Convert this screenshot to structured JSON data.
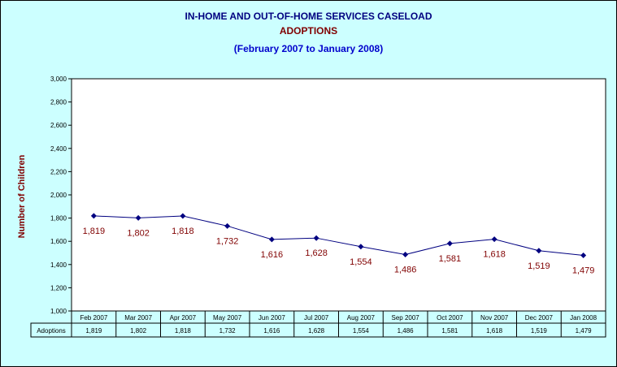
{
  "chart_data": {
    "type": "line",
    "title": "IN-HOME AND OUT-OF-HOME SERVICES CASELOAD",
    "subtitle": "ADOPTIONS",
    "date_range": "(February 2007 to January 2008)",
    "ylabel": "Number of Children",
    "xlabel": "",
    "categories": [
      "Feb 2007",
      "Mar 2007",
      "Apr 2007",
      "May 2007",
      "Jun 2007",
      "Jul 2007",
      "Aug 2007",
      "Sep 2007",
      "Oct 2007",
      "Nov 2007",
      "Dec 2007",
      "Jan 2008"
    ],
    "series": [
      {
        "name": "Adoptions",
        "values": [
          1819,
          1802,
          1818,
          1732,
          1616,
          1628,
          1554,
          1486,
          1581,
          1618,
          1519,
          1479
        ],
        "labels": [
          "1,819",
          "1,802",
          "1,818",
          "1,732",
          "1,616",
          "1,628",
          "1,554",
          "1,486",
          "1,581",
          "1,618",
          "1,519",
          "1,479"
        ]
      }
    ],
    "ylim": [
      1000,
      3000
    ],
    "yticks": [
      1000,
      1200,
      1400,
      1600,
      1800,
      2000,
      2200,
      2400,
      2600,
      2800,
      3000
    ],
    "ytick_labels": [
      "1,000",
      "1,200",
      "1,400",
      "1,600",
      "1,800",
      "2,000",
      "2,200",
      "2,400",
      "2,600",
      "2,800",
      "3,000"
    ],
    "grid": false,
    "legend": "data-table-below",
    "colors": {
      "background": "#ccffff",
      "plot_area": "#ffffff",
      "line": "#000080",
      "marker": "#000080",
      "data_label": "#800000",
      "title": "#000080",
      "subtitle": "#800000",
      "date_range": "#0000cc",
      "ylabel": "#800000"
    }
  }
}
